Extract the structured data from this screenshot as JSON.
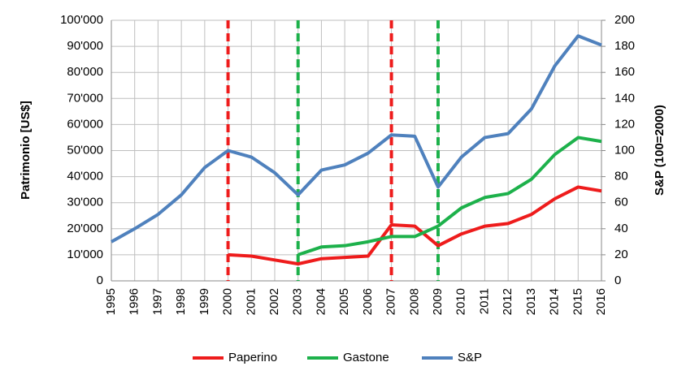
{
  "chart_data": {
    "type": "line",
    "y_label": "Patrimonio [US$]",
    "y2_label": "S&P (100=2000)",
    "x": [
      1995,
      1996,
      1997,
      1998,
      1999,
      2000,
      2001,
      2002,
      2003,
      2004,
      2005,
      2006,
      2007,
      2008,
      2009,
      2010,
      2011,
      2012,
      2013,
      2014,
      2015,
      2016
    ],
    "xlim": [
      1995,
      2016
    ],
    "xticks": [
      1995,
      1996,
      1997,
      1998,
      1999,
      2000,
      2001,
      2002,
      2003,
      2004,
      2005,
      2006,
      2007,
      2008,
      2009,
      2010,
      2011,
      2012,
      2013,
      2014,
      2015,
      2016
    ],
    "ylim": [
      0,
      100000
    ],
    "yticks": [
      {
        "value": 0,
        "label": "0"
      },
      {
        "value": 10000,
        "label": "10'000"
      },
      {
        "value": 20000,
        "label": "20'000"
      },
      {
        "value": 30000,
        "label": "30'000"
      },
      {
        "value": 40000,
        "label": "40'000"
      },
      {
        "value": 50000,
        "label": "50'000"
      },
      {
        "value": 60000,
        "label": "60'000"
      },
      {
        "value": 70000,
        "label": "70'000"
      },
      {
        "value": 80000,
        "label": "80'000"
      },
      {
        "value": 90000,
        "label": "90'000"
      },
      {
        "value": 100000,
        "label": "100'000"
      }
    ],
    "y2lim": [
      0,
      200
    ],
    "y2ticks": [
      0,
      20,
      40,
      60,
      80,
      100,
      120,
      140,
      160,
      180,
      200
    ],
    "grid": true,
    "legend": "bottom",
    "series": [
      {
        "name": "Paperino",
        "color": "#ee1c1c",
        "values": [
          null,
          null,
          null,
          null,
          null,
          10000,
          9500,
          8000,
          6500,
          8500,
          9000,
          9500,
          21500,
          21000,
          13500,
          18000,
          21000,
          22000,
          25500,
          31500,
          36000,
          34500
        ]
      },
      {
        "name": "Gastone",
        "color": "#1db14b",
        "values": [
          null,
          null,
          null,
          null,
          null,
          null,
          null,
          null,
          10000,
          13000,
          13500,
          15000,
          17000,
          17000,
          21000,
          28000,
          32000,
          33500,
          39000,
          48500,
          55000,
          53500
        ]
      },
      {
        "name": "S&P",
        "color": "#4f81bd",
        "axis": "y2",
        "values": [
          30,
          40,
          51,
          66,
          87,
          100,
          95,
          83,
          66,
          85,
          89,
          98,
          112,
          111,
          72,
          95,
          110,
          113,
          132,
          165,
          188,
          181
        ]
      }
    ],
    "vlines": [
      {
        "x": 2000,
        "color": "#ee1c1c"
      },
      {
        "x": 2003,
        "color": "#1db14b"
      },
      {
        "x": 2007,
        "color": "#ee1c1c"
      },
      {
        "x": 2009,
        "color": "#1db14b"
      }
    ]
  }
}
